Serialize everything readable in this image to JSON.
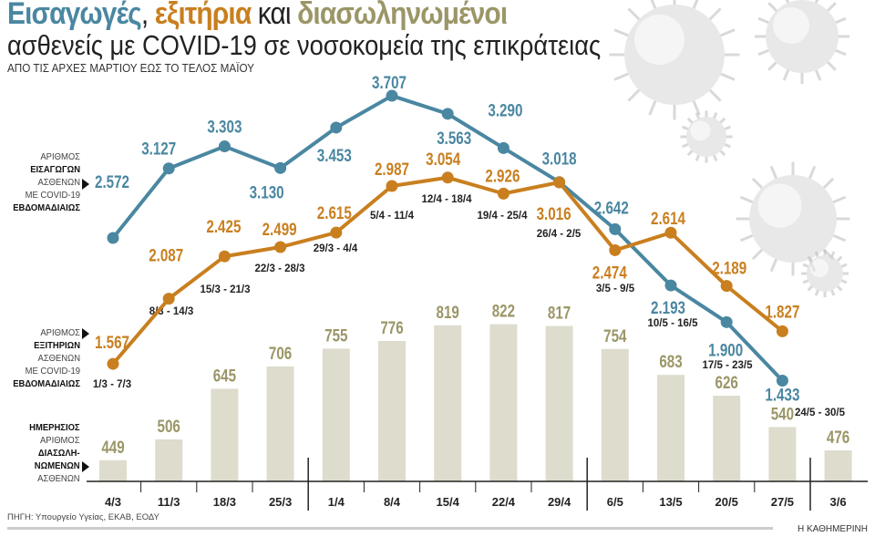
{
  "title": {
    "part1": "Εισαγωγές",
    "sep": ", ",
    "part2": "εξιτήρια",
    "part3": " και ",
    "part4": "διασωληνωμένοι"
  },
  "subtitle": "ασθενείς με COVID-19 σε νοσοκομεία της επικράτειας",
  "period": "ΑΠΟ ΤΙΣ ΑΡΧΕΣ ΜΑΡΤΙΟΥ ΕΩΣ ΤΟ ΤΕΛΟΣ ΜΑΪΟΥ",
  "labels": {
    "admissions": [
      "ΑΡΙΘΜΟΣ",
      "ΕΙΣΑΓΩΓΩΝ",
      "ΑΣΘΕΝΩΝ",
      "ΜΕ COVID-19",
      "ΕΒΔΟΜΑΔΙΑΙΩΣ"
    ],
    "discharges": [
      "ΑΡΙΘΜΟΣ",
      "ΕΞΙΤΗΡΙΩΝ",
      "ΑΣΘΕΝΩΝ",
      "ΜΕ COVID-19",
      "ΕΒΔΟΜΑΔΙΑΙΩΣ"
    ],
    "intubated": [
      "ΗΜΕΡΗΣΙΟΣ",
      "ΑΡΙΘΜΟΣ",
      "ΔΙΑΣΩΛΗ-",
      "ΝΩΜΕΝΩΝ",
      "ΑΣΘΕΝΩΝ"
    ]
  },
  "source": "ΠΗΓΗ: Υπουργείο Υγείας, ΕΚΑΒ, ΕΟΔΥ",
  "brand": "Η ΚΑΘΗΜΕΡΙΝΗ",
  "colors": {
    "admissions": "#4a87a1",
    "discharges": "#c97f1f",
    "intubated": "#9b9667",
    "bar": "#dddccd"
  },
  "chart_data": {
    "type": "line+bar",
    "weeks": [
      "1/3 - 7/3",
      "8/3 - 14/3",
      "15/3 - 21/3",
      "22/3 - 28/3",
      "29/3 - 4/4",
      "5/4 - 11/4",
      "12/4 - 18/4",
      "19/4 - 25/4",
      "26/4 - 2/5",
      "3/5 - 9/5",
      "10/5 - 16/5",
      "17/5 - 23/5",
      "24/5 - 30/5"
    ],
    "series": [
      {
        "name": "ΕΙΣΑΓΩΓΩΝ",
        "type": "line",
        "values": [
          2572,
          3127,
          3303,
          3130,
          3453,
          3707,
          3563,
          3290,
          3018,
          2642,
          2193,
          1900,
          1433
        ],
        "display": [
          "2.572",
          "3.127",
          "3.303",
          "3.130",
          "3.453",
          "3.707",
          "3.563",
          "3.290",
          "3.018",
          "2.642",
          "2.193",
          "1.900",
          "1.433"
        ]
      },
      {
        "name": "ΕΞΙΤΗΡΙΩΝ",
        "type": "line",
        "values": [
          1567,
          2087,
          2425,
          2499,
          2615,
          2987,
          3054,
          2926,
          3016,
          2474,
          2614,
          2189,
          1827
        ],
        "display": [
          "1.567",
          "2.087",
          "2.425",
          "2.499",
          "2.615",
          "2.987",
          "3.054",
          "2.926",
          "3.016",
          "2.474",
          "2.614",
          "2.189",
          "1.827"
        ]
      }
    ],
    "bars": {
      "name": "ΔΙΑΣΩΛΗΝΩΜΕΝΩΝ",
      "categories": [
        "4/3",
        "11/3",
        "18/3",
        "25/3",
        "1/4",
        "8/4",
        "15/4",
        "22/4",
        "29/4",
        "6/5",
        "13/5",
        "20/5",
        "27/5",
        "3/6"
      ],
      "values": [
        449,
        506,
        645,
        706,
        755,
        776,
        819,
        822,
        817,
        754,
        683,
        626,
        540,
        476
      ]
    }
  }
}
